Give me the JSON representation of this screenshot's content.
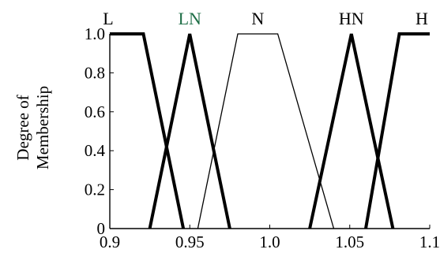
{
  "chart_data": {
    "type": "line",
    "title": "",
    "xlabel": "",
    "ylabel_lines": [
      "Degree of",
      "Membership"
    ],
    "xlim": [
      0.9,
      1.1
    ],
    "ylim": [
      0,
      1
    ],
    "x_ticks": [
      {
        "value": 0.9,
        "label": "0.9",
        "color": "#000000"
      },
      {
        "value": 0.95,
        "label": "0.95",
        "color": "#000000"
      },
      {
        "value": 1.0,
        "label": "1.0",
        "color": "#000000"
      },
      {
        "value": 1.05,
        "label": "1.05",
        "color": "#000000"
      },
      {
        "value": 1.1,
        "label": "1.1",
        "color": "#1e6e46"
      }
    ],
    "y_ticks": [
      {
        "value": 0,
        "label": "0"
      },
      {
        "value": 0.2,
        "label": "0.2"
      },
      {
        "value": 0.4,
        "label": "0.4"
      },
      {
        "value": 0.6,
        "label": "0.6"
      },
      {
        "value": 0.8,
        "label": "0.8"
      },
      {
        "value": 1.0,
        "label": "1.0"
      }
    ],
    "grid": false,
    "series": [
      {
        "name": "L",
        "label_color": "#000000",
        "weight": "thick",
        "x": [
          0.9,
          0.921,
          0.946
        ],
        "y": [
          1,
          1,
          0
        ]
      },
      {
        "name": "LN",
        "label_color": "#1e6e46",
        "weight": "thick",
        "x": [
          0.925,
          0.95,
          0.975
        ],
        "y": [
          0,
          1,
          0
        ]
      },
      {
        "name": "N",
        "label_color": "#000000",
        "weight": "thin",
        "x": [
          0.955,
          0.98,
          1.005,
          1.04
        ],
        "y": [
          0,
          1,
          1,
          0
        ]
      },
      {
        "name": "HN",
        "label_color": "#000000",
        "weight": "thick",
        "x": [
          1.025,
          1.051,
          1.077
        ],
        "y": [
          0,
          1,
          0
        ]
      },
      {
        "name": "H",
        "label_color": "#000000",
        "weight": "thick",
        "x": [
          1.06,
          1.081,
          1.1
        ],
        "y": [
          0,
          1,
          1
        ]
      }
    ]
  }
}
